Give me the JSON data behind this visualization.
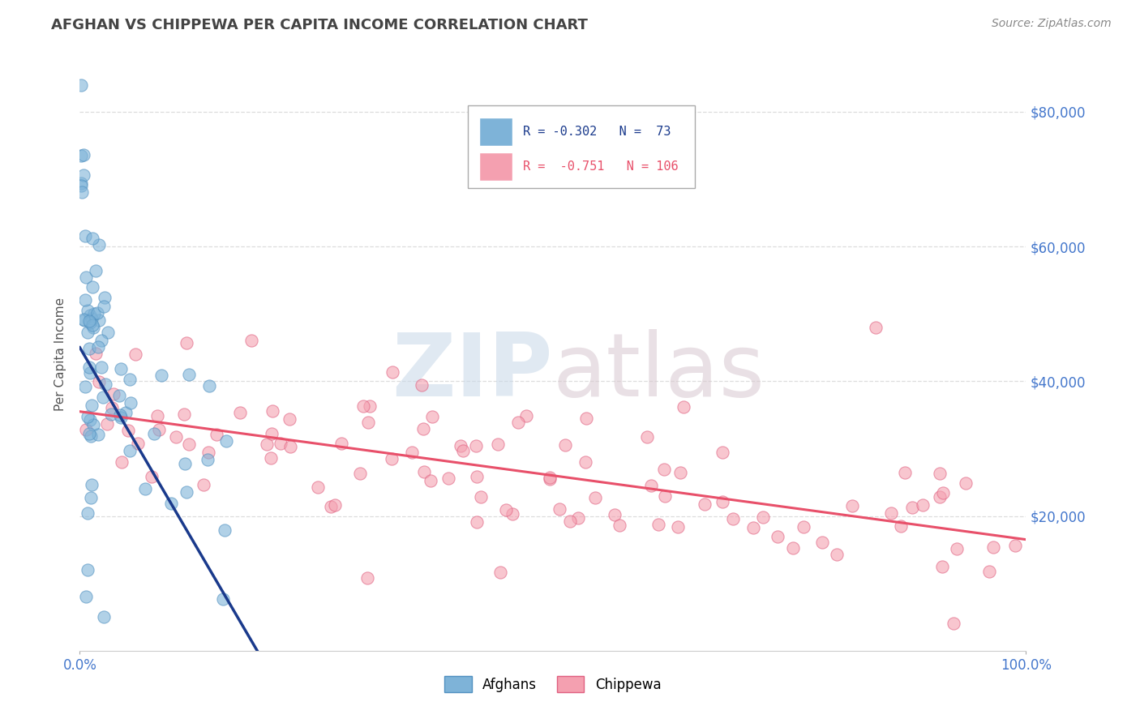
{
  "title": "AFGHAN VS CHIPPEWA PER CAPITA INCOME CORRELATION CHART",
  "source": "Source: ZipAtlas.com",
  "ylabel": "Per Capita Income",
  "xlim": [
    0,
    1.0
  ],
  "ylim": [
    0,
    88000
  ],
  "ytick_values": [
    20000,
    40000,
    60000,
    80000
  ],
  "ytick_labels": [
    "$20,000",
    "$40,000",
    "$60,000",
    "$80,000"
  ],
  "legend_bottom_blue": "Afghans",
  "legend_bottom_pink": "Chippewa",
  "blue_color": "#7EB3D8",
  "blue_edge_color": "#5090C0",
  "pink_color": "#F4A0B0",
  "pink_edge_color": "#E06080",
  "blue_line_color": "#1A3A8C",
  "pink_line_color": "#E8506A",
  "watermark_zip": "ZIP",
  "watermark_atlas": "atlas",
  "title_color": "#444444",
  "source_color": "#888888",
  "ytick_color": "#4477CC",
  "xtick_color": "#4477CC",
  "grid_color": "#DDDDDD",
  "legend_text_blue": "R = -0.302   N =  73",
  "legend_text_pink": "R =  -0.751   N = 106"
}
